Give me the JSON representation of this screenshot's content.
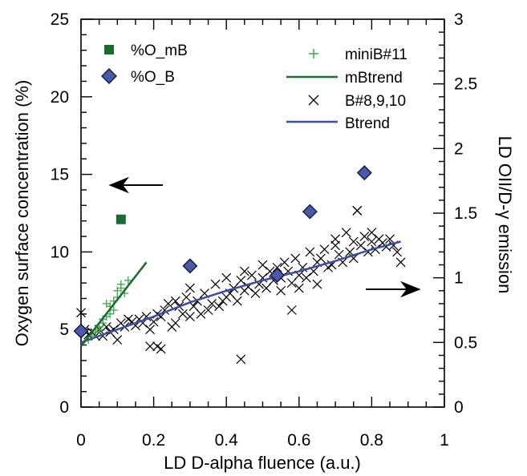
{
  "chart_data": {
    "type": "scatter",
    "title": "",
    "xlabel": "LD D-alpha fluence (a.u.)",
    "ylabel": "Oxygen surface concentration (%)",
    "y2label": "LD OII/D-γ emission",
    "xlim": [
      0,
      1
    ],
    "ylim": [
      0,
      25
    ],
    "y2lim": [
      0,
      3
    ],
    "x_ticks": [
      "0",
      "0.2",
      "0.4",
      "0.6",
      "0.8",
      "1"
    ],
    "y_ticks": [
      "0",
      "5",
      "10",
      "15",
      "20",
      "25"
    ],
    "y2_ticks": [
      "0",
      "0.5",
      "1",
      "1.5",
      "2",
      "2.5",
      "3"
    ],
    "grid": false,
    "legend_left": [
      "%O_mB",
      "%O_B"
    ],
    "legend_right": [
      "miniB#11",
      "mBtrend",
      "B#8,9,10",
      "Btrend"
    ],
    "colors": {
      "mB": "#1e6b32",
      "B_fill": "#4a5aa8",
      "B_edge": "#14183a",
      "miniB": "#3aaa4a",
      "mBtrend": "#1e6b32",
      "Btrend": "#3c4ea0",
      "cross": "#000000"
    },
    "series": [
      {
        "name": "%O_mB",
        "axis": "left",
        "marker": "square",
        "x": [
          0.11
        ],
        "y": [
          12.1
        ]
      },
      {
        "name": "%O_B",
        "axis": "left",
        "marker": "diamond",
        "x": [
          0.0,
          0.3,
          0.54,
          0.63,
          0.78
        ],
        "y": [
          4.9,
          9.1,
          8.5,
          12.6,
          15.1
        ]
      },
      {
        "name": "miniB#11",
        "axis": "right",
        "marker": "plus",
        "x": [
          0.02,
          0.03,
          0.04,
          0.05,
          0.05,
          0.06,
          0.06,
          0.07,
          0.07,
          0.08,
          0.08,
          0.09,
          0.09,
          0.1,
          0.1,
          0.11,
          0.11,
          0.12,
          0.13
        ],
        "y": [
          0.52,
          0.55,
          0.58,
          0.62,
          0.6,
          0.65,
          0.68,
          0.7,
          0.8,
          0.72,
          0.78,
          0.75,
          0.82,
          0.85,
          0.9,
          0.92,
          0.95,
          0.88,
          0.98
        ]
      },
      {
        "name": "mBtrend",
        "axis": "right",
        "marker": "line",
        "x": [
          0.0,
          0.18
        ],
        "y": [
          0.47,
          1.12
        ]
      },
      {
        "name": "B#8,9,10",
        "axis": "right",
        "marker": "cross",
        "x": [
          0.0,
          0.01,
          0.02,
          0.03,
          0.04,
          0.05,
          0.06,
          0.07,
          0.08,
          0.09,
          0.1,
          0.11,
          0.12,
          0.13,
          0.14,
          0.15,
          0.16,
          0.17,
          0.18,
          0.19,
          0.2,
          0.21,
          0.22,
          0.23,
          0.24,
          0.25,
          0.26,
          0.27,
          0.28,
          0.29,
          0.3,
          0.3,
          0.31,
          0.32,
          0.33,
          0.34,
          0.35,
          0.36,
          0.37,
          0.38,
          0.39,
          0.4,
          0.4,
          0.41,
          0.42,
          0.43,
          0.44,
          0.45,
          0.45,
          0.46,
          0.47,
          0.48,
          0.49,
          0.5,
          0.5,
          0.51,
          0.52,
          0.53,
          0.54,
          0.55,
          0.55,
          0.56,
          0.57,
          0.58,
          0.59,
          0.6,
          0.6,
          0.61,
          0.62,
          0.63,
          0.64,
          0.65,
          0.65,
          0.66,
          0.67,
          0.68,
          0.69,
          0.7,
          0.7,
          0.71,
          0.72,
          0.73,
          0.74,
          0.75,
          0.75,
          0.76,
          0.77,
          0.78,
          0.79,
          0.8,
          0.8,
          0.81,
          0.82,
          0.83,
          0.84,
          0.85,
          0.86,
          0.87,
          0.88,
          0.19,
          0.21,
          0.22,
          0.44,
          0.26,
          0.58,
          0.76
        ],
        "y": [
          0.73,
          0.6,
          0.56,
          0.58,
          0.55,
          0.6,
          0.55,
          0.62,
          0.58,
          0.6,
          0.52,
          0.65,
          0.62,
          0.68,
          0.66,
          0.63,
          0.68,
          0.65,
          0.7,
          0.6,
          0.66,
          0.72,
          0.7,
          0.75,
          0.8,
          0.62,
          0.82,
          0.78,
          0.72,
          0.85,
          0.7,
          0.92,
          0.78,
          0.82,
          0.72,
          0.88,
          0.75,
          0.8,
          0.95,
          0.78,
          0.82,
          0.85,
          1.0,
          0.88,
          0.92,
          0.82,
          0.98,
          0.9,
          1.05,
          0.93,
          1.02,
          0.88,
          0.95,
          1.0,
          1.1,
          0.92,
          1.05,
          0.98,
          1.08,
          0.9,
          1.0,
          1.12,
          1.05,
          0.96,
          1.15,
          1.02,
          0.92,
          1.08,
          1.0,
          1.2,
          1.05,
          1.12,
          0.95,
          1.15,
          1.22,
          1.08,
          1.1,
          1.25,
          1.3,
          1.18,
          1.12,
          1.35,
          1.2,
          1.28,
          1.15,
          1.52,
          1.25,
          1.32,
          1.2,
          1.35,
          1.28,
          1.22,
          1.3,
          1.27,
          1.24,
          1.3,
          1.25,
          1.2,
          1.12,
          0.47,
          0.47,
          0.45,
          0.37,
          0.65,
          0.75,
          1.52
        ]
      },
      {
        "name": "Btrend",
        "axis": "right",
        "marker": "line",
        "x": [
          0.0,
          0.1,
          0.2,
          0.3,
          0.4,
          0.5,
          0.6,
          0.7,
          0.8,
          0.88
        ],
        "y": [
          0.5,
          0.6,
          0.7,
          0.81,
          0.9,
          0.98,
          1.05,
          1.13,
          1.22,
          1.28
        ]
      }
    ]
  }
}
